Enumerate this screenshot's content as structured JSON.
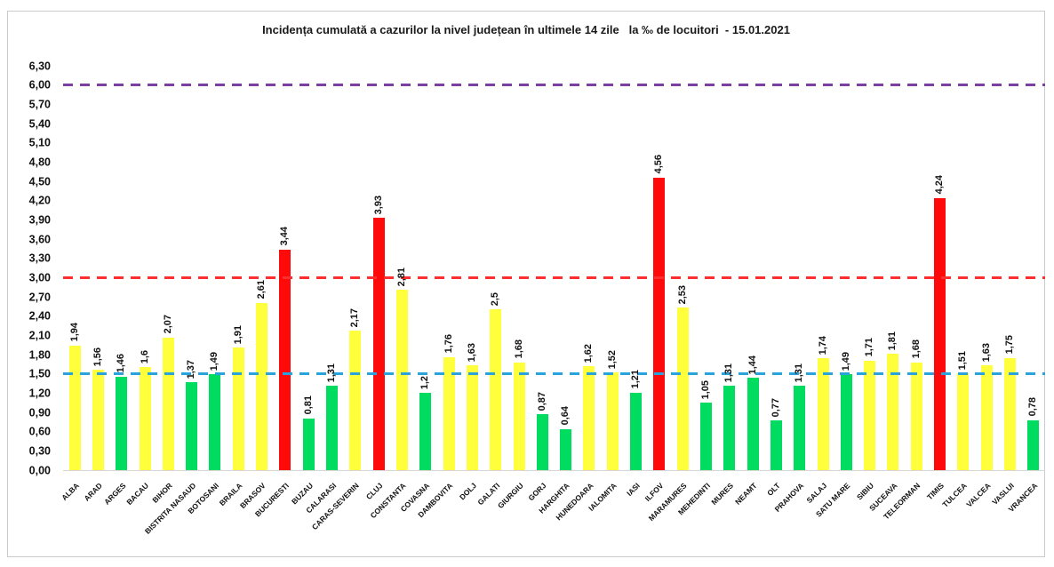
{
  "page": {
    "background": "#ffffff",
    "frame_border_color": "#c9cccf"
  },
  "chart_data": {
    "type": "bar",
    "title": "Incidența cumulată a cazurilor la nivel județean în ultimele 14 zile   la ‰ de locuitori  - 15.01.2021",
    "date": "15.01.2021",
    "unit": "‰ de locuitori",
    "xlabel": "",
    "ylabel": "",
    "ylim": [
      0,
      6.3
    ],
    "ytick_step": 0.3,
    "ytick_labels": [
      "0,00",
      "0,30",
      "0,60",
      "0,90",
      "1,20",
      "1,50",
      "1,80",
      "2,10",
      "2,40",
      "2,70",
      "3,00",
      "3,30",
      "3,60",
      "3,90",
      "4,20",
      "4,50",
      "4,80",
      "5,10",
      "5,40",
      "5,70",
      "6,00",
      "6,30"
    ],
    "grid": "off",
    "legend": "none",
    "categories": [
      "ALBA",
      "ARAD",
      "ARGES",
      "BACAU",
      "BIHOR",
      "BISTRITA NASAUD",
      "BOTOSANI",
      "BRAILA",
      "BRASOV",
      "BUCURESTI",
      "BUZAU",
      "CALARASI",
      "CARAS-SEVERIN",
      "CLUJ",
      "CONSTANTA",
      "COVASNA",
      "DAMBOVITA",
      "DOLJ",
      "GALATI",
      "GIURGIU",
      "GORJ",
      "HARGHITA",
      "HUNEDOARA",
      "IALOMITA",
      "IASI",
      "ILFOV",
      "MARAMURES",
      "MEHEDINTI",
      "MURES",
      "NEAMT",
      "OLT",
      "PRAHOVA",
      "SALAJ",
      "SATU MARE",
      "SIBIU",
      "SUCEAVA",
      "TELEORMAN",
      "TIMIS",
      "TULCEA",
      "VALCEA",
      "VASLUI",
      "VRANCEA"
    ],
    "values": [
      1.94,
      1.56,
      1.46,
      1.6,
      2.07,
      1.37,
      1.49,
      1.91,
      2.61,
      3.44,
      0.81,
      1.31,
      2.17,
      3.93,
      2.81,
      1.2,
      1.76,
      1.63,
      2.5,
      1.68,
      0.87,
      0.64,
      1.62,
      1.52,
      1.21,
      4.56,
      2.53,
      1.05,
      1.31,
      1.44,
      0.77,
      1.31,
      1.74,
      1.49,
      1.71,
      1.81,
      1.68,
      4.24,
      1.51,
      1.63,
      1.75,
      0.78
    ],
    "value_labels": [
      "1,94",
      "1,56",
      "1,46",
      "1,6",
      "2,07",
      "1,37",
      "1,49",
      "1,91",
      "2,61",
      "3,44",
      "0,81",
      "1,31",
      "2,17",
      "3,93",
      "2,81",
      "1,2",
      "1,76",
      "1,63",
      "2,5",
      "1,68",
      "0,87",
      "0,64",
      "1,62",
      "1,52",
      "1,21",
      "4,56",
      "2,53",
      "1,05",
      "1,31",
      "1,44",
      "0,77",
      "1,31",
      "1,74",
      "1,49",
      "1,71",
      "1,81",
      "1,68",
      "4,24",
      "1,51",
      "1,63",
      "1,75",
      "0,78"
    ],
    "bar_colors": [
      "#ffff3b",
      "#ffff3b",
      "#00dc5f",
      "#ffff3b",
      "#ffff3b",
      "#00dc5f",
      "#00dc5f",
      "#ffff3b",
      "#ffff3b",
      "#ff0a0a",
      "#00dc5f",
      "#00dc5f",
      "#ffff3b",
      "#ff0a0a",
      "#ffff3b",
      "#00dc5f",
      "#ffff3b",
      "#ffff3b",
      "#ffff3b",
      "#ffff3b",
      "#00dc5f",
      "#00dc5f",
      "#ffff3b",
      "#ffff3b",
      "#00dc5f",
      "#ff0a0a",
      "#ffff3b",
      "#00dc5f",
      "#00dc5f",
      "#00dc5f",
      "#00dc5f",
      "#00dc5f",
      "#ffff3b",
      "#00dc5f",
      "#ffff3b",
      "#ffff3b",
      "#ffff3b",
      "#ff0a0a",
      "#ffff3b",
      "#ffff3b",
      "#ffff3b",
      "#00dc5f"
    ],
    "palette": {
      "green_below_1_5": "#00dc5f",
      "yellow_1_5_to_3": "#ffff3b",
      "red_above_3": "#ff0a0a"
    },
    "reference_lines": [
      {
        "value": 6.0,
        "label": "6,00",
        "color": "#7b3fa2",
        "style": "dashed"
      },
      {
        "value": 3.0,
        "label": "3,00",
        "color": "#ff2e2e",
        "style": "dashed"
      },
      {
        "value": 1.5,
        "label": "1,50",
        "color": "#29a3dc",
        "style": "dashed"
      }
    ]
  }
}
